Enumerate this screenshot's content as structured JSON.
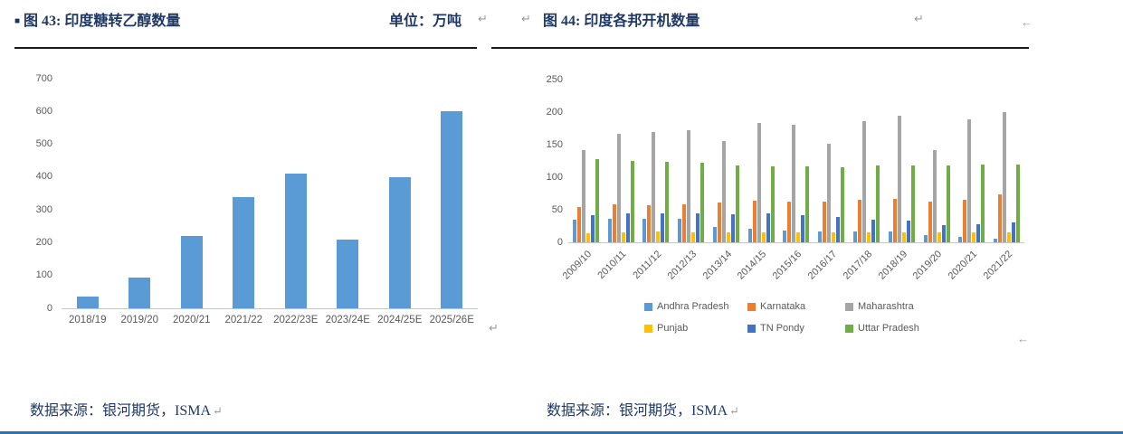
{
  "figures": {
    "fig43": {
      "bullet": "■",
      "title": "图 43: 印度糖转乙醇数量",
      "unit": "单位：万吨",
      "source": "数据来源：银河期货，ISMA"
    },
    "fig44": {
      "title": "图 44: 印度各邦开机数量",
      "source": "数据来源：银河期货，ISMA"
    },
    "return_mark": "↵",
    "wrap_mark": "←"
  },
  "chart_data": [
    {
      "id": "fig43",
      "type": "bar",
      "title": "印度糖转乙醇数量",
      "unit_label": "单位：万吨",
      "categories": [
        "2018/19",
        "2019/20",
        "2020/21",
        "2021/22",
        "2022/23E",
        "2023/24E",
        "2024/25E",
        "2025/26E"
      ],
      "values": [
        35,
        95,
        220,
        340,
        410,
        210,
        400,
        600
      ],
      "ylim": [
        0,
        700
      ],
      "yticks": [
        0,
        100,
        200,
        300,
        400,
        500,
        600,
        700
      ],
      "bar_color": "#5B9BD5",
      "grid": false,
      "legend": "none"
    },
    {
      "id": "fig44",
      "type": "grouped-bar",
      "title": "印度各邦开机数量",
      "categories": [
        "2009/10",
        "2010/11",
        "2011/12",
        "2012/13",
        "2013/14",
        "2014/15",
        "2015/16",
        "2016/17",
        "2017/18",
        "2018/19",
        "2019/20",
        "2020/21",
        "2021/22"
      ],
      "series": [
        {
          "name": "Andhra Pradesh",
          "color": "#5B9BD5",
          "values": [
            35,
            36,
            36,
            36,
            23,
            21,
            18,
            17,
            17,
            17,
            11,
            8,
            5
          ]
        },
        {
          "name": "Karnataka",
          "color": "#ED7D31",
          "values": [
            54,
            58,
            57,
            59,
            61,
            64,
            63,
            63,
            65,
            66,
            62,
            65,
            73
          ]
        },
        {
          "name": "Maharashtra",
          "color": "#A5A5A5",
          "values": [
            142,
            166,
            170,
            172,
            156,
            183,
            180,
            152,
            186,
            195,
            142,
            189,
            200
          ]
        },
        {
          "name": "Punjab",
          "color": "#FFC000",
          "values": [
            14,
            15,
            16,
            15,
            15,
            15,
            15,
            15,
            15,
            15,
            15,
            15,
            15
          ]
        },
        {
          "name": "TN Pondy",
          "color": "#4472C4",
          "values": [
            42,
            45,
            44,
            44,
            43,
            44,
            42,
            39,
            35,
            34,
            27,
            28,
            30
          ]
        },
        {
          "name": "Uttar Pradesh",
          "color": "#70AD47",
          "values": [
            128,
            125,
            124,
            122,
            118,
            117,
            116,
            115,
            118,
            118,
            118,
            119,
            119
          ]
        }
      ],
      "ylim": [
        0,
        250
      ],
      "yticks": [
        0,
        50,
        100,
        150,
        200,
        250
      ],
      "grid": false,
      "legend_position": "bottom"
    }
  ],
  "colors": {
    "title_navy": "#1F3864",
    "axis_text": "#595959",
    "axis_line": "#C6C6C6",
    "underline": "#1A1A1A",
    "bottom_rule": "#2E74B5",
    "mark_gray": "#9A9A9A"
  }
}
